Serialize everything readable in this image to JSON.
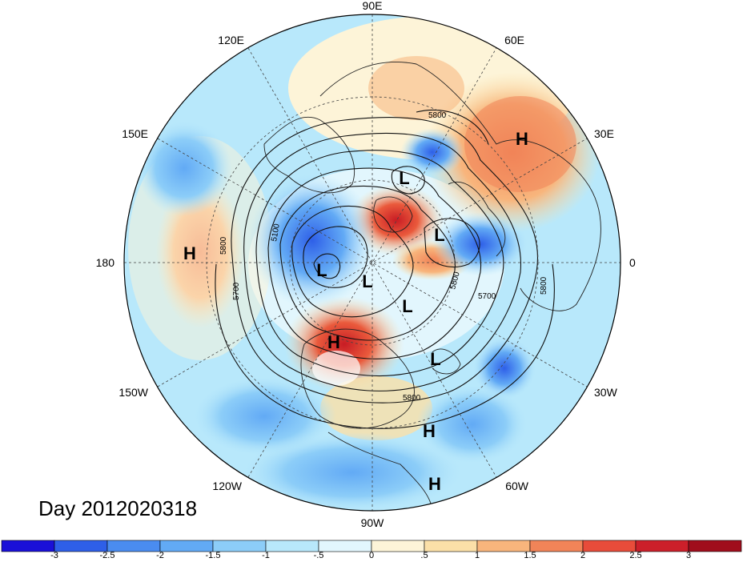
{
  "title": "Day 2012020318",
  "projection": "north-polar-stereographic",
  "longitude_labels": {
    "deg0": "0",
    "deg30e": "30E",
    "deg60e": "60E",
    "deg90e": "90E",
    "deg120e": "120E",
    "deg150e": "150E",
    "deg180": "180",
    "deg150w": "150W",
    "deg120w": "120W",
    "deg90w": "90W",
    "deg60w": "60W",
    "deg30w": "30W"
  },
  "contour_labels": [
    "5800",
    "5100",
    "5800",
    "5700",
    "5800",
    "5700",
    "5800",
    "5800"
  ],
  "pressure_centers": [
    {
      "type": "H",
      "label": "H"
    },
    {
      "type": "L",
      "label": "L"
    },
    {
      "type": "L",
      "label": "L"
    },
    {
      "type": "H",
      "label": "H"
    },
    {
      "type": "L",
      "label": "L"
    },
    {
      "type": "L",
      "label": "L"
    },
    {
      "type": "L",
      "label": "L"
    },
    {
      "type": "H",
      "label": "H"
    },
    {
      "type": "L",
      "label": "L"
    },
    {
      "type": "H",
      "label": "H"
    },
    {
      "type": "H",
      "label": "H"
    }
  ],
  "colorbar": {
    "colors": [
      "#1a10d8",
      "#2e5fe8",
      "#4a8cf0",
      "#62aaf5",
      "#8ccdf8",
      "#b8e8fb",
      "#e2f6fd",
      "#fdf4d8",
      "#fbe0a8",
      "#f8b57c",
      "#f18458",
      "#e84c3a",
      "#cc1f2a",
      "#a00d1c"
    ],
    "labels": [
      "-3",
      "-2.5",
      "-2",
      "-1.5",
      "-1",
      "-.5",
      "0",
      ".5",
      "1",
      "1.5",
      "2",
      "2.5",
      "3"
    ]
  }
}
